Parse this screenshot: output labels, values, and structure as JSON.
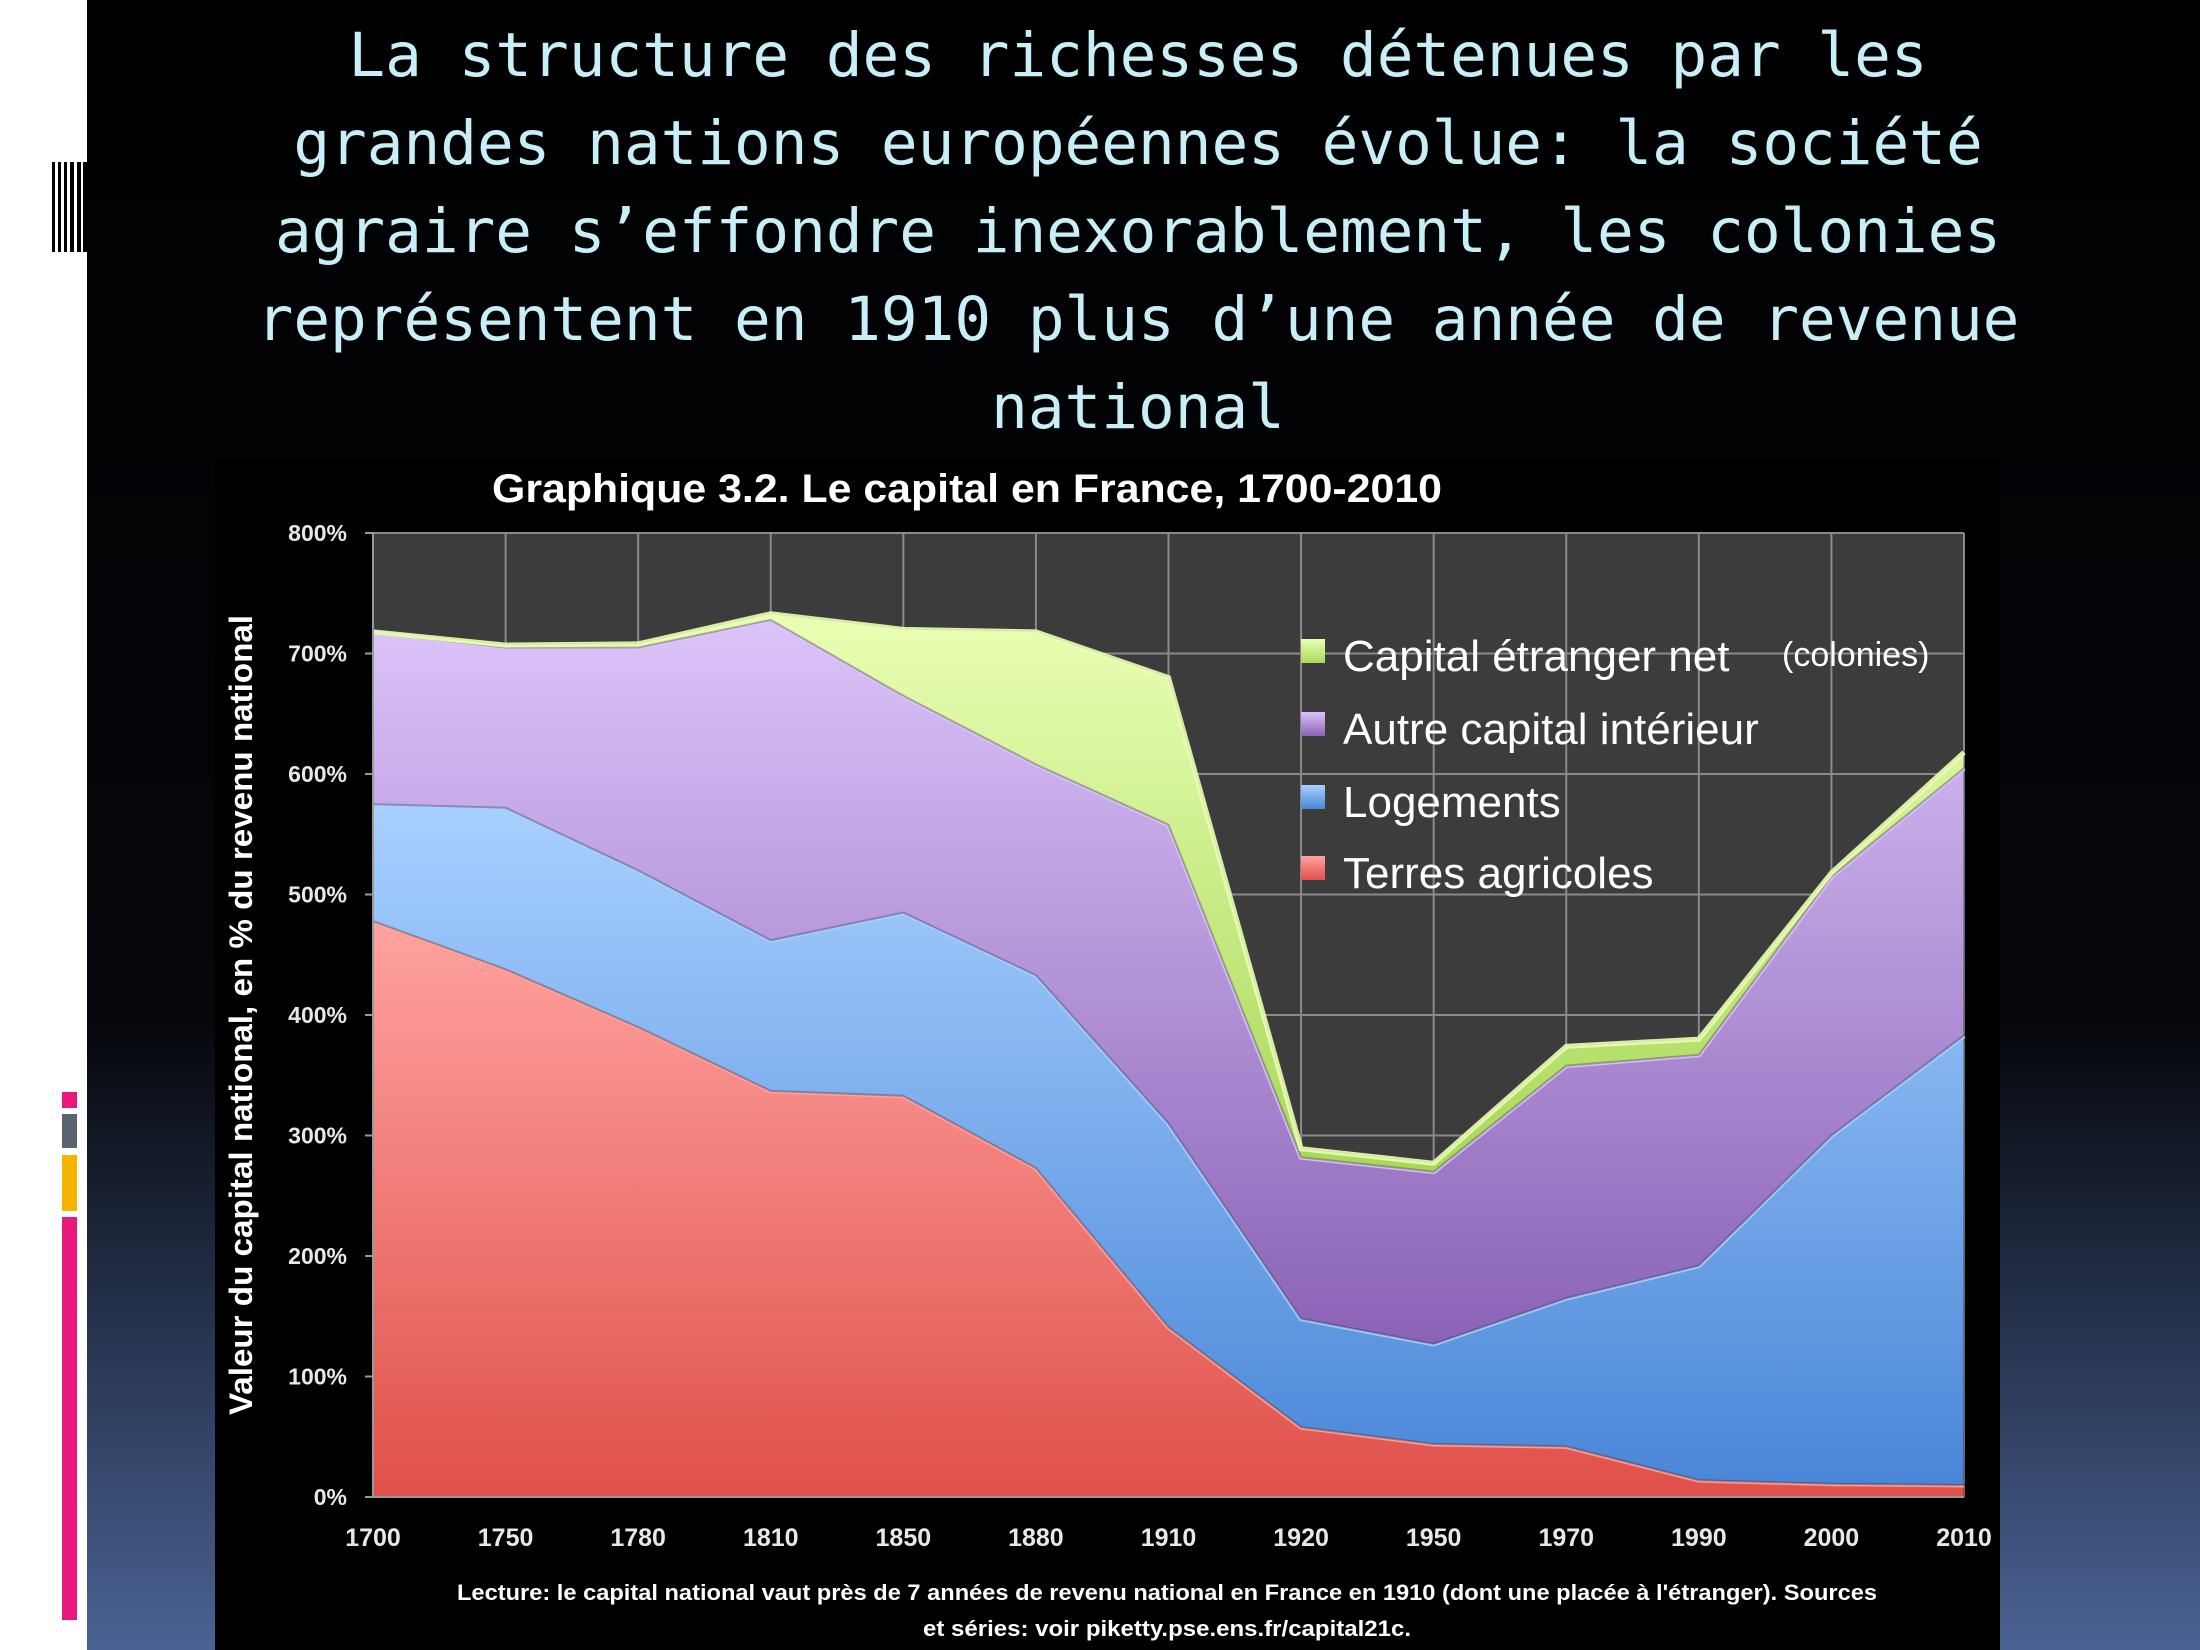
{
  "slide": {
    "title_lines": [
      "La structure des richesses détenues par les",
      "grandes nations européennes évolue: la société",
      "agraire s’effondre inexorablement, les colonies",
      "représentent en 1910 plus d’une année de revenue",
      "national"
    ],
    "accent_colors": [
      "#e8197a",
      "#5a6470",
      "#f5b400",
      "#e8197a"
    ]
  },
  "chart_data": {
    "type": "area",
    "stacked": true,
    "title": "Graphique 3.2. Le capital en France, 1700-2010",
    "xlabel": "",
    "ylabel": "Valeur du capital national, en % du revenu national",
    "categories": [
      "1700",
      "1750",
      "1780",
      "1810",
      "1850",
      "1880",
      "1910",
      "1920",
      "1950",
      "1970",
      "1990",
      "2000",
      "2010"
    ],
    "ylim": [
      0,
      800
    ],
    "yticks": [
      "0%",
      "100%",
      "200%",
      "300%",
      "400%",
      "500%",
      "600%",
      "700%",
      "800%"
    ],
    "grid": true,
    "legend_position": "top-right",
    "series": [
      {
        "name": "Terres agricoles",
        "color": "#e0504a",
        "light": "#ffa3a0",
        "values": [
          478,
          438,
          390,
          337,
          333,
          273,
          141,
          58,
          44,
          42,
          14,
          11,
          10
        ]
      },
      {
        "name": "Logements",
        "color": "#4a86d8",
        "light": "#a8d0ff",
        "values": [
          97,
          134,
          130,
          125,
          152,
          160,
          169,
          90,
          83,
          123,
          178,
          289,
          373
        ]
      },
      {
        "name": "Autre capital intérieur",
        "color": "#8a62b6",
        "light": "#dcc4fa",
        "values": [
          142,
          133,
          185,
          266,
          180,
          175,
          248,
          134,
          143,
          193,
          175,
          215,
          222
        ]
      },
      {
        "name": "Capital étranger net",
        "color": "#a8d85a",
        "light": "#eaffb4",
        "values": [
          1,
          2,
          3,
          5,
          55,
          110,
          122,
          7,
          7,
          16,
          13,
          3,
          13
        ]
      }
    ],
    "legend_annotation": "(colonies)",
    "note_lines": [
      "Lecture: le capital national vaut près de 7 années de revenu national en France en 1910 (dont une placée à l'étranger). Sources",
      "et séries: voir piketty.pse.ens.fr/capital21c."
    ]
  }
}
